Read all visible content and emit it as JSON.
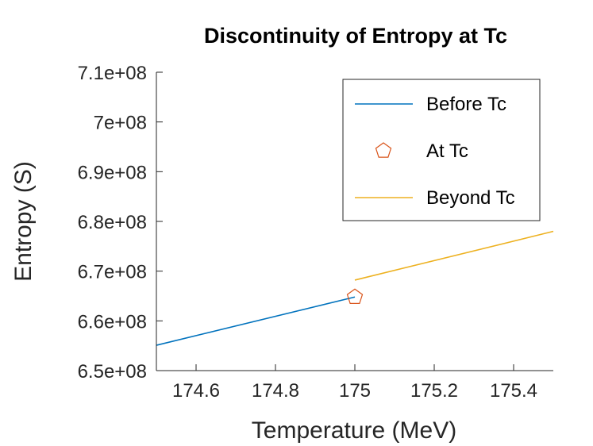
{
  "chart_data": {
    "type": "line",
    "title": "Discontinuity of Entropy at Tc",
    "xlabel": "Temperature (MeV)",
    "ylabel": "Entropy (S)",
    "xlim": [
      174.5,
      175.5
    ],
    "ylim": [
      650000000,
      710000000
    ],
    "xticks": [
      174.6,
      174.8,
      175,
      175.2,
      175.4
    ],
    "xtick_labels": [
      "174.6",
      "174.8",
      "175",
      "175.2",
      "175.4"
    ],
    "yticks": [
      650000000,
      660000000,
      670000000,
      680000000,
      690000000,
      700000000,
      710000000
    ],
    "ytick_labels": [
      "6.5e+08",
      "6.6e+08",
      "6.7e+08",
      "6.8e+08",
      "6.9e+08",
      "7e+08",
      "7.1e+08"
    ],
    "grid": false,
    "legend_position": "top-right",
    "series": [
      {
        "name": "Before Tc",
        "kind": "line",
        "color": "#0072BD",
        "x": [
          174.5,
          175.0
        ],
        "y": [
          655100000,
          664800000
        ]
      },
      {
        "name": "At Tc",
        "kind": "marker",
        "marker": "pentagon",
        "color": "#D95319",
        "x": [
          175.0
        ],
        "y": [
          664800000
        ]
      },
      {
        "name": "Beyond Tc",
        "kind": "line",
        "color": "#EDB120",
        "x": [
          175.0,
          175.5
        ],
        "y": [
          668200000,
          678000000
        ]
      }
    ]
  }
}
